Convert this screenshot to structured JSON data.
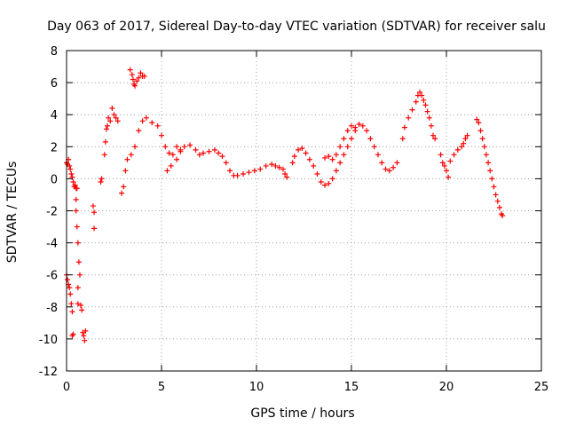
{
  "chart_data": {
    "type": "scatter",
    "title": "Day 063 of 2017, Sidereal Day-to-day VTEC variation (SDTVAR) for receiver salu",
    "xlabel": "GPS time / hours",
    "ylabel": "SDTVAR / TECUs",
    "xlim": [
      0,
      25
    ],
    "ylim": [
      -12,
      8
    ],
    "xticks": [
      0,
      5,
      10,
      15,
      20,
      25
    ],
    "yticks": [
      -12,
      -10,
      -8,
      -6,
      -4,
      -2,
      0,
      2,
      4,
      6,
      8
    ],
    "grid": true,
    "marker": "+",
    "series_color": "#ff0000",
    "series": [
      {
        "name": "SDTVAR",
        "points": [
          [
            0.0,
            1.0
          ],
          [
            0.05,
            0.9
          ],
          [
            0.1,
            1.2
          ],
          [
            0.15,
            0.8
          ],
          [
            0.2,
            0.6
          ],
          [
            0.25,
            0.3
          ],
          [
            0.3,
            0.1
          ],
          [
            0.35,
            -0.2
          ],
          [
            0.4,
            -0.5
          ],
          [
            0.45,
            -0.4
          ],
          [
            0.5,
            -0.6
          ],
          [
            0.5,
            -1.3
          ],
          [
            0.55,
            -0.6
          ],
          [
            0.0,
            -6.0
          ],
          [
            0.05,
            -6.3
          ],
          [
            0.1,
            -6.6
          ],
          [
            0.15,
            -6.8
          ],
          [
            0.2,
            -7.2
          ],
          [
            0.25,
            -7.8
          ],
          [
            0.3,
            -8.3
          ],
          [
            0.3,
            -9.8
          ],
          [
            0.35,
            -9.7
          ],
          [
            0.5,
            -2.0
          ],
          [
            0.55,
            -3.0
          ],
          [
            0.6,
            -4.0
          ],
          [
            0.65,
            -5.2
          ],
          [
            0.7,
            -6.0
          ],
          [
            0.6,
            -6.8
          ],
          [
            0.6,
            -7.8
          ],
          [
            0.75,
            -7.9
          ],
          [
            0.8,
            -8.2
          ],
          [
            0.85,
            -9.6
          ],
          [
            0.9,
            -9.8
          ],
          [
            0.95,
            -10.1
          ],
          [
            1.0,
            -9.5
          ],
          [
            1.4,
            -1.7
          ],
          [
            1.45,
            -2.1
          ],
          [
            1.45,
            -3.1
          ],
          [
            1.8,
            -0.2
          ],
          [
            1.85,
            0.0
          ],
          [
            2.0,
            1.5
          ],
          [
            2.05,
            2.3
          ],
          [
            2.1,
            3.1
          ],
          [
            2.15,
            3.3
          ],
          [
            2.2,
            3.8
          ],
          [
            2.3,
            3.6
          ],
          [
            2.4,
            4.4
          ],
          [
            2.5,
            4.0
          ],
          [
            2.6,
            3.8
          ],
          [
            2.7,
            3.6
          ],
          [
            2.9,
            -0.9
          ],
          [
            3.0,
            -0.5
          ],
          [
            3.1,
            0.5
          ],
          [
            3.2,
            1.2
          ],
          [
            3.4,
            1.5
          ],
          [
            3.6,
            2.0
          ],
          [
            3.8,
            3.0
          ],
          [
            4.0,
            3.6
          ],
          [
            4.2,
            3.8
          ],
          [
            4.5,
            3.5
          ],
          [
            4.8,
            3.3
          ],
          [
            5.0,
            2.7
          ],
          [
            5.2,
            2.0
          ],
          [
            5.4,
            1.6
          ],
          [
            5.6,
            1.5
          ],
          [
            5.8,
            2.0
          ],
          [
            6.0,
            1.8
          ],
          [
            3.35,
            6.8
          ],
          [
            3.45,
            6.5
          ],
          [
            3.5,
            6.2
          ],
          [
            3.55,
            5.9
          ],
          [
            3.6,
            5.8
          ],
          [
            3.7,
            6.1
          ],
          [
            3.8,
            6.3
          ],
          [
            3.9,
            6.6
          ],
          [
            4.0,
            6.4
          ],
          [
            4.1,
            6.4
          ],
          [
            5.3,
            0.5
          ],
          [
            5.5,
            0.8
          ],
          [
            5.8,
            1.2
          ],
          [
            6.0,
            1.7
          ],
          [
            6.2,
            2.0
          ],
          [
            6.5,
            2.1
          ],
          [
            6.8,
            1.8
          ],
          [
            7.0,
            1.5
          ],
          [
            7.2,
            1.6
          ],
          [
            7.5,
            1.7
          ],
          [
            7.8,
            1.8
          ],
          [
            8.0,
            1.6
          ],
          [
            8.2,
            1.4
          ],
          [
            8.4,
            1.0
          ],
          [
            8.6,
            0.5
          ],
          [
            8.8,
            0.2
          ],
          [
            9.0,
            0.2
          ],
          [
            9.3,
            0.3
          ],
          [
            9.6,
            0.4
          ],
          [
            9.9,
            0.5
          ],
          [
            10.2,
            0.6
          ],
          [
            10.5,
            0.8
          ],
          [
            10.8,
            0.9
          ],
          [
            11.0,
            0.8
          ],
          [
            11.2,
            0.7
          ],
          [
            11.4,
            0.6
          ],
          [
            11.5,
            0.3
          ],
          [
            11.6,
            0.1
          ],
          [
            11.9,
            1.0
          ],
          [
            12.0,
            1.4
          ],
          [
            12.2,
            1.8
          ],
          [
            12.4,
            1.9
          ],
          [
            12.6,
            1.6
          ],
          [
            12.8,
            1.2
          ],
          [
            13.0,
            0.8
          ],
          [
            13.2,
            0.3
          ],
          [
            13.4,
            -0.2
          ],
          [
            13.6,
            -0.4
          ],
          [
            13.8,
            -0.3
          ],
          [
            14.0,
            0.0
          ],
          [
            14.2,
            0.5
          ],
          [
            14.4,
            1.0
          ],
          [
            14.6,
            1.5
          ],
          [
            14.8,
            2.0
          ],
          [
            15.0,
            2.5
          ],
          [
            15.2,
            3.0
          ],
          [
            15.4,
            3.4
          ],
          [
            15.6,
            3.3
          ],
          [
            15.8,
            3.0
          ],
          [
            16.0,
            2.5
          ],
          [
            16.2,
            2.0
          ],
          [
            16.4,
            1.5
          ],
          [
            16.6,
            1.0
          ],
          [
            16.8,
            0.6
          ],
          [
            17.0,
            0.5
          ],
          [
            17.2,
            0.7
          ],
          [
            17.4,
            1.0
          ],
          [
            13.6,
            1.3
          ],
          [
            13.8,
            1.4
          ],
          [
            14.0,
            1.2
          ],
          [
            14.2,
            1.5
          ],
          [
            14.4,
            2.0
          ],
          [
            14.6,
            2.5
          ],
          [
            14.8,
            3.0
          ],
          [
            15.0,
            3.3
          ],
          [
            15.2,
            3.2
          ],
          [
            17.7,
            2.5
          ],
          [
            17.8,
            3.2
          ],
          [
            18.0,
            3.8
          ],
          [
            18.2,
            4.3
          ],
          [
            18.4,
            4.8
          ],
          [
            18.5,
            5.2
          ],
          [
            18.6,
            5.4
          ],
          [
            18.7,
            5.2
          ],
          [
            18.8,
            4.9
          ],
          [
            18.9,
            4.6
          ],
          [
            19.0,
            4.2
          ],
          [
            19.1,
            3.8
          ],
          [
            19.2,
            3.3
          ],
          [
            19.3,
            2.7
          ],
          [
            19.4,
            2.5
          ],
          [
            19.7,
            1.5
          ],
          [
            19.8,
            1.0
          ],
          [
            19.9,
            0.8
          ],
          [
            20.0,
            0.5
          ],
          [
            20.1,
            0.1
          ],
          [
            20.2,
            1.1
          ],
          [
            20.4,
            1.5
          ],
          [
            20.6,
            1.8
          ],
          [
            20.8,
            2.0
          ],
          [
            20.9,
            2.2
          ],
          [
            21.0,
            2.5
          ],
          [
            21.1,
            2.7
          ],
          [
            21.6,
            3.7
          ],
          [
            21.7,
            3.5
          ],
          [
            21.8,
            3.0
          ],
          [
            21.9,
            2.5
          ],
          [
            22.0,
            2.0
          ],
          [
            22.1,
            1.5
          ],
          [
            22.2,
            1.0
          ],
          [
            22.3,
            0.5
          ],
          [
            22.4,
            0.0
          ],
          [
            22.5,
            -0.5
          ],
          [
            22.6,
            -1.0
          ],
          [
            22.7,
            -1.4
          ],
          [
            22.8,
            -1.8
          ],
          [
            22.9,
            -2.2
          ],
          [
            22.95,
            -2.3
          ]
        ]
      }
    ]
  }
}
